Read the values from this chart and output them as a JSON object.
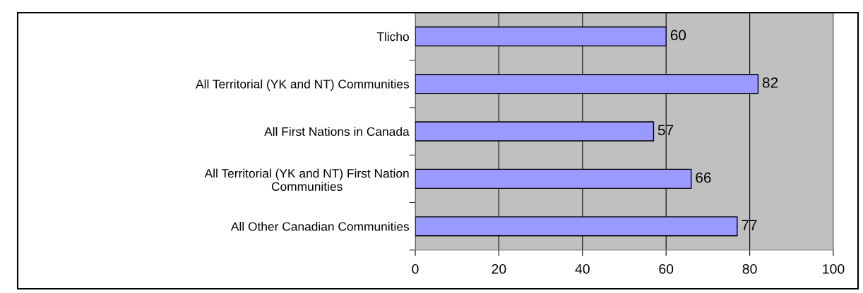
{
  "chart_data": {
    "type": "bar",
    "orientation": "horizontal",
    "categories": [
      "Tlicho",
      "All Territorial (YK and NT) Communities",
      "All First Nations in Canada",
      "All Territorial (YK and NT) First Nation\nCommunities",
      "All Other Canadian Communities"
    ],
    "values": [
      60,
      82,
      57,
      66,
      77
    ],
    "color": "#9999ff",
    "data_labels": true,
    "xlim": [
      0,
      100
    ],
    "xticks": [
      0,
      20,
      40,
      60,
      80,
      100
    ],
    "grid": "x"
  }
}
